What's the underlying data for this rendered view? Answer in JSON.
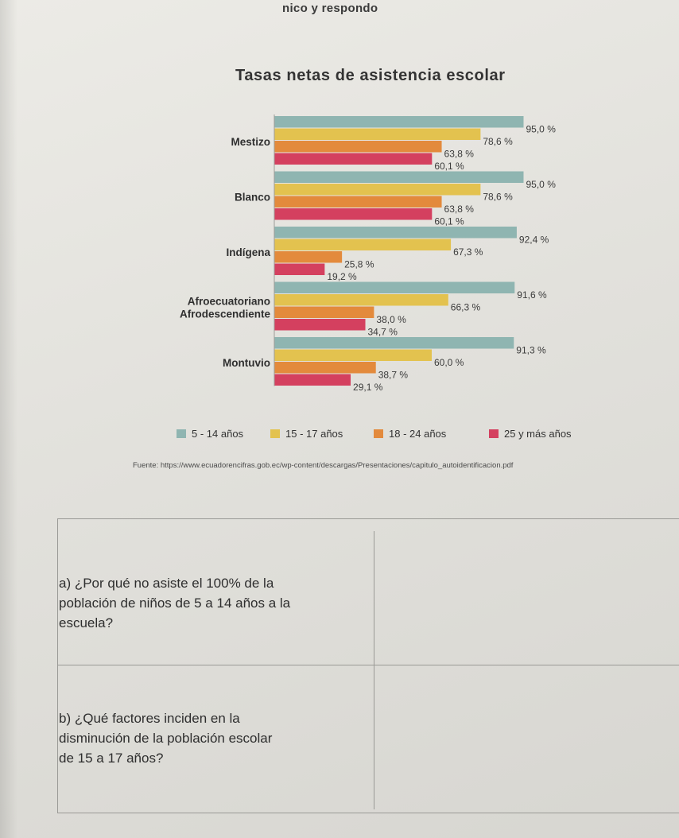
{
  "header_fragment": "nico y respondo",
  "chart_data": {
    "type": "bar",
    "orientation": "horizontal",
    "title": "Tasas netas de asistencia escolar",
    "categories": [
      "Mestizo",
      "Blanco",
      "Indígena",
      "Afroecuatoriano Afrodescendiente",
      "Montuvio"
    ],
    "category_lines": [
      [
        "Mestizo"
      ],
      [
        "Blanco"
      ],
      [
        "Indígena"
      ],
      [
        "Afroecuatoriano",
        "Afrodescendiente"
      ],
      [
        "Montuvio"
      ]
    ],
    "series": [
      {
        "name": "5 - 14 años",
        "values": [
          95.0,
          95.0,
          92.4,
          91.6,
          91.3
        ],
        "labels": [
          "95,0 %",
          "95,0 %",
          "92,4 %",
          "91,6 %",
          "91,3 %"
        ]
      },
      {
        "name": "15 - 17 años",
        "values": [
          78.6,
          78.6,
          67.3,
          66.3,
          60.0
        ],
        "labels": [
          "78,6 %",
          "78,6 %",
          "67,3 %",
          "66,3 %",
          "60,0 %"
        ]
      },
      {
        "name": "18 - 24 años",
        "values": [
          63.8,
          63.8,
          25.8,
          38.0,
          38.7
        ],
        "labels": [
          "63,8 %",
          "63,8 %",
          "25,8 %",
          "38,0 %",
          "38,7 %"
        ]
      },
      {
        "name": "25 y más años",
        "values": [
          60.1,
          60.1,
          19.2,
          34.7,
          29.1
        ],
        "labels": [
          "60,1 %",
          "60,1 %",
          "19,2 %",
          "34,7 %",
          "29,1 %"
        ]
      }
    ],
    "xlim": [
      0,
      100
    ],
    "grid": false,
    "legend_position": "bottom"
  },
  "colors": {
    "series": [
      "#8fb5b1",
      "#e3c24f",
      "#e38a3c",
      "#d4405f"
    ],
    "text": "#2f2f2f"
  },
  "source": "Fuente: https://www.ecuadorencifras.gob.ec/wp-content/descargas/Presentaciones/capitulo_autoidentificacion.pdf",
  "questions": {
    "a": [
      "a) ¿Por qué no asiste el 100% de la",
      "población de niños de 5 a 14 años a la",
      "escuela?"
    ],
    "b": [
      "b) ¿Qué factores inciden en la",
      "disminución de la población escolar",
      "de 15 a 17 años?"
    ]
  }
}
